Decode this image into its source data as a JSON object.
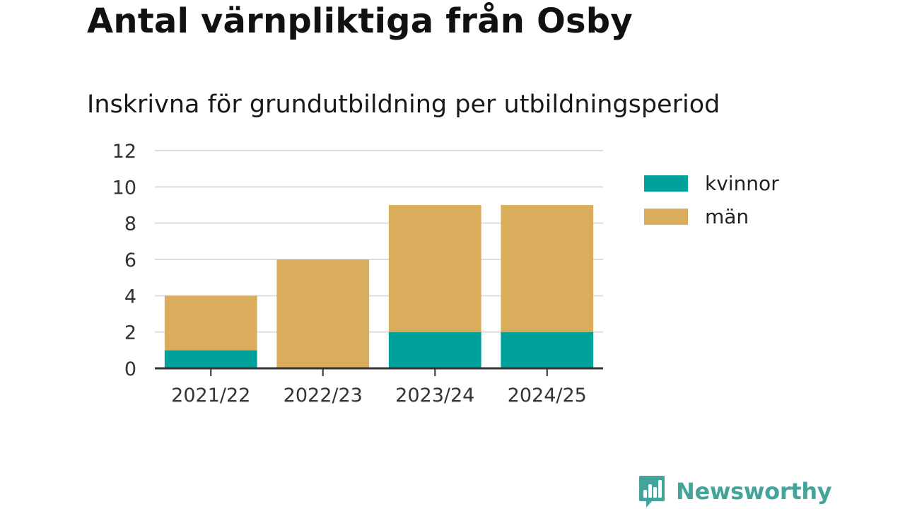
{
  "header": {
    "title": "Antal värnpliktiga från Osby",
    "subtitle": "Inskrivna för grundutbildning per utbildningsperiod"
  },
  "brand": {
    "name": "Newsworthy",
    "color": "#44a39a"
  },
  "chart_data": {
    "type": "bar",
    "stacked": true,
    "categories": [
      "2021/22",
      "2022/23",
      "2023/24",
      "2024/25"
    ],
    "series": [
      {
        "name": "kvinnor",
        "color": "#00a19a",
        "values": [
          1,
          0,
          2,
          2
        ]
      },
      {
        "name": "män",
        "color": "#d9ad5b",
        "values": [
          3,
          6,
          7,
          7
        ]
      }
    ],
    "ylim": [
      0,
      12
    ],
    "yticks": [
      0,
      2,
      4,
      6,
      8,
      10,
      12
    ],
    "grid": true,
    "legend": "right",
    "xlabel": "",
    "ylabel": ""
  }
}
